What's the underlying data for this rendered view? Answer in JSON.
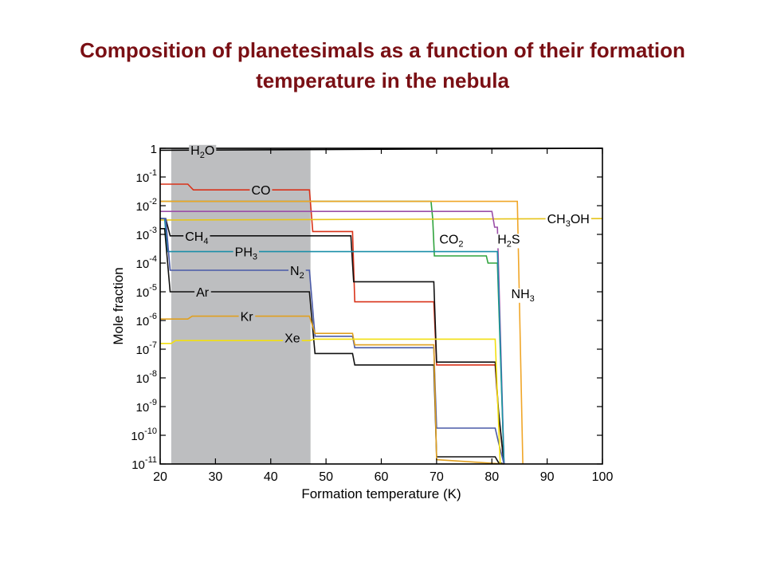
{
  "slide": {
    "title_line1": "Composition of planetesimals as a function of their formation",
    "title_line2": "temperature in the nebula"
  },
  "chart_data": {
    "type": "line",
    "title": "",
    "xlabel": "Formation temperature (K)",
    "ylabel": "Mole fraction",
    "xlim": [
      20,
      100
    ],
    "ylim_log10": [
      -11,
      0
    ],
    "y_scale": "log",
    "grid": false,
    "x_ticks": [
      "20",
      "30",
      "40",
      "50",
      "60",
      "70",
      "80",
      "90",
      "100"
    ],
    "y_ticks": [
      {
        "exp": 0,
        "label": "1"
      },
      {
        "exp": -1,
        "label": "10",
        "sup": "-1"
      },
      {
        "exp": -2,
        "label": "10",
        "sup": "-2"
      },
      {
        "exp": -3,
        "label": "10",
        "sup": "-3"
      },
      {
        "exp": -4,
        "label": "10",
        "sup": "-4"
      },
      {
        "exp": -5,
        "label": "10",
        "sup": "-5"
      },
      {
        "exp": -6,
        "label": "10",
        "sup": "-6"
      },
      {
        "exp": -7,
        "label": "10",
        "sup": "-7"
      },
      {
        "exp": -8,
        "label": "10",
        "sup": "-8"
      },
      {
        "exp": -9,
        "label": "10",
        "sup": "-9"
      },
      {
        "exp": -10,
        "label": "10",
        "sup": "-10"
      },
      {
        "exp": -11,
        "label": "10",
        "sup": "-11"
      }
    ],
    "shaded_band": {
      "x": [
        22,
        47.2
      ],
      "color": "#bdbec0"
    },
    "series": [
      {
        "name": "H2O",
        "color": "#000000",
        "label_main": "H",
        "label_sub": "2",
        "label_tail": "O",
        "label_at": [
          25.5,
          -0.05
        ],
        "points": [
          [
            20,
            -0.07
          ],
          [
            100,
            0.0
          ]
        ]
      },
      {
        "name": "CO",
        "color": "#d9331a",
        "label_main": "CO",
        "label_at": [
          36.5,
          -1.45
        ],
        "points": [
          [
            20,
            -1.25
          ],
          [
            25,
            -1.25
          ],
          [
            26,
            -1.45
          ],
          [
            47,
            -1.45
          ],
          [
            47.6,
            -2.9
          ],
          [
            54.8,
            -2.9
          ],
          [
            55.2,
            -5.35
          ],
          [
            69.5,
            -5.35
          ],
          [
            70,
            -7.55
          ],
          [
            80.6,
            -7.55
          ],
          [
            81.2,
            -9.25
          ],
          [
            82.2,
            -11
          ]
        ]
      },
      {
        "name": "CO2",
        "color": "#2fa33d",
        "label_main": "CO",
        "label_sub": "2",
        "label_at": [
          70.5,
          -3.15
        ],
        "points": [
          [
            20,
            -1.85
          ],
          [
            69,
            -1.85
          ],
          [
            69.3,
            -2.45
          ],
          [
            69.6,
            -3.75
          ],
          [
            79,
            -3.75
          ],
          [
            79.3,
            -4.0
          ],
          [
            81,
            -4.0
          ],
          [
            82.2,
            -11
          ]
        ]
      },
      {
        "name": "CH3OH",
        "color": "#e6c41a",
        "label_main": "CH",
        "label_sub": "3",
        "label_tail": "OH",
        "label_at": [
          90,
          -2.45
        ],
        "points": [
          [
            20,
            -2.5
          ],
          [
            100,
            -2.45
          ]
        ]
      },
      {
        "name": "H2S",
        "color": "#9b4fa8",
        "label_main": "H",
        "label_sub": "2",
        "label_tail": "S",
        "label_at": [
          81,
          -3.15
        ],
        "points": [
          [
            20,
            -2.2
          ],
          [
            80,
            -2.2
          ],
          [
            80.5,
            -2.75
          ],
          [
            81,
            -2.75
          ],
          [
            82.2,
            -11
          ]
        ]
      },
      {
        "name": "NH3",
        "color": "#f0a628",
        "label_main": "NH",
        "label_sub": "3",
        "label_at": [
          83.5,
          -5.05
        ],
        "points": [
          [
            20,
            -1.85
          ],
          [
            84.6,
            -1.85
          ],
          [
            85.6,
            -11
          ]
        ]
      },
      {
        "name": "CH4",
        "color": "#111111",
        "label_main": "CH",
        "label_sub": "4",
        "label_at": [
          24.5,
          -3.05
        ],
        "points": [
          [
            20,
            -2.45
          ],
          [
            21,
            -2.45
          ],
          [
            21.8,
            -3.05
          ],
          [
            54.5,
            -3.05
          ],
          [
            55,
            -4.65
          ],
          [
            69.5,
            -4.65
          ],
          [
            70,
            -7.45
          ],
          [
            80.6,
            -7.45
          ],
          [
            81.2,
            -9.15
          ],
          [
            82.2,
            -11
          ]
        ]
      },
      {
        "name": "PH3",
        "color": "#1a8fa8",
        "label_main": "PH",
        "label_sub": "3",
        "label_at": [
          33.5,
          -3.6
        ],
        "points": [
          [
            20,
            -2.45
          ],
          [
            20.8,
            -2.45
          ],
          [
            21.3,
            -3.6
          ],
          [
            81,
            -3.6
          ],
          [
            82.2,
            -11
          ]
        ]
      },
      {
        "name": "N2",
        "color": "#4a5aa8",
        "label_main": "N",
        "label_sub": "2",
        "label_at": [
          43.5,
          -4.25
        ],
        "points": [
          [
            20,
            -2.45
          ],
          [
            21,
            -2.45
          ],
          [
            21.8,
            -4.25
          ],
          [
            47,
            -4.25
          ],
          [
            48,
            -6.55
          ],
          [
            54.8,
            -6.55
          ],
          [
            55.2,
            -6.95
          ],
          [
            69.5,
            -6.95
          ],
          [
            70,
            -9.75
          ],
          [
            80.6,
            -9.75
          ],
          [
            81.2,
            -10.25
          ],
          [
            82.2,
            -11
          ]
        ]
      },
      {
        "name": "Ar",
        "color": "#111111",
        "label_main": "Ar",
        "label_at": [
          26.5,
          -5.0
        ],
        "points": [
          [
            20,
            -2.8
          ],
          [
            20.8,
            -2.8
          ],
          [
            21.8,
            -5.0
          ],
          [
            47,
            -5.0
          ],
          [
            48,
            -7.15
          ],
          [
            54.8,
            -7.15
          ],
          [
            55.2,
            -7.55
          ],
          [
            69.5,
            -7.55
          ],
          [
            70,
            -10.75
          ],
          [
            80.6,
            -10.75
          ],
          [
            81.2,
            -10.95
          ],
          [
            82.2,
            -11
          ]
        ]
      },
      {
        "name": "Kr",
        "color": "#e0a020",
        "label_main": "Kr",
        "label_at": [
          34.5,
          -5.85
        ],
        "points": [
          [
            20,
            -5.95
          ],
          [
            25,
            -5.95
          ],
          [
            25.8,
            -5.85
          ],
          [
            47,
            -5.85
          ],
          [
            48,
            -6.45
          ],
          [
            54.8,
            -6.45
          ],
          [
            55.2,
            -6.85
          ],
          [
            69.5,
            -6.85
          ],
          [
            70,
            -10.85
          ],
          [
            82.2,
            -11
          ]
        ]
      },
      {
        "name": "Xe",
        "color": "#f2e010",
        "label_main": "Xe",
        "label_at": [
          42.5,
          -6.6
        ],
        "points": [
          [
            20,
            -6.8
          ],
          [
            22,
            -6.8
          ],
          [
            22.8,
            -6.7
          ],
          [
            47,
            -6.7
          ],
          [
            48,
            -6.65
          ],
          [
            80.6,
            -6.65
          ],
          [
            81.5,
            -11
          ]
        ]
      }
    ]
  }
}
